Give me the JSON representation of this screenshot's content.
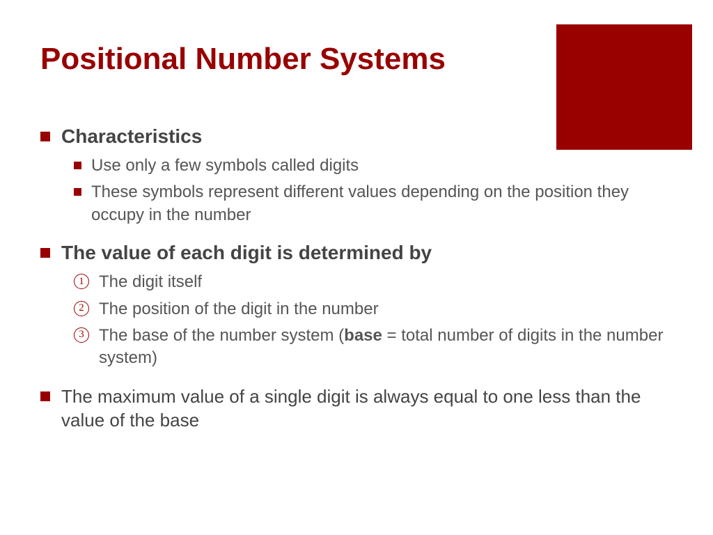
{
  "colors": {
    "accent": "#990000",
    "text_dark": "#444444",
    "text_body": "#555555",
    "background": "#ffffff"
  },
  "title": "Positional Number Systems",
  "section1": {
    "heading": "Characteristics",
    "items": [
      "Use only a few symbols called digits",
      "These symbols represent different values depending on the position they occupy in the number"
    ]
  },
  "section2": {
    "heading": "The value of each digit is determined by",
    "items": [
      {
        "num": "1",
        "text": "The digit itself"
      },
      {
        "num": "2",
        "text": "The position of the digit in the number"
      },
      {
        "num": "3",
        "text_pre": "The base of the number system (",
        "bold": "base",
        "text_post": " = total number of digits in the number system)"
      }
    ]
  },
  "section3": {
    "text": "The maximum value of a single digit is always equal to one less than the value of the base"
  }
}
